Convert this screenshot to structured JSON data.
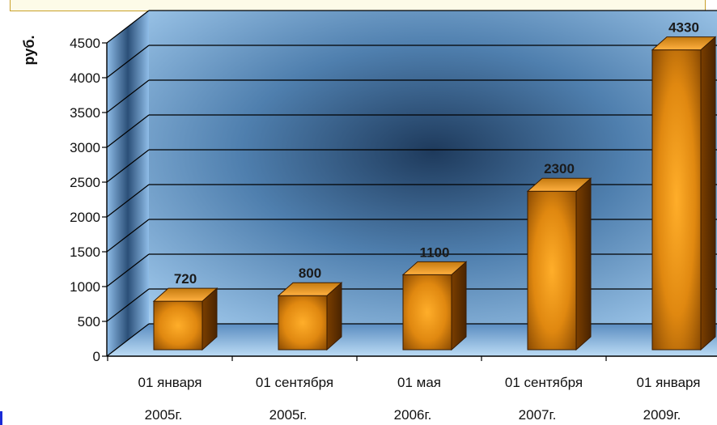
{
  "chart_data": {
    "type": "bar",
    "ylabel": "руб.",
    "ylim": [
      0,
      4500
    ],
    "yticks": [
      0,
      500,
      1000,
      1500,
      2000,
      2500,
      3000,
      3500,
      4000,
      4500
    ],
    "grid": true,
    "categories": [
      [
        "01 января",
        "2005г."
      ],
      [
        "01 сентября",
        "2005г."
      ],
      [
        "01 мая",
        "2006г."
      ],
      [
        "01 сентября",
        "2007г."
      ],
      [
        "01 января",
        "2009г."
      ]
    ],
    "values": [
      720,
      800,
      1100,
      2300,
      4330
    ],
    "data_labels": [
      "720",
      "800",
      "1100",
      "2300",
      "4330"
    ],
    "colors": {
      "bar_light": "#ff9a1a",
      "bar_mid": "#d07808",
      "bar_dark": "#6a3600",
      "wall": "#8fbde8",
      "wall_dark": "#1e3a5c",
      "grid": "#000000"
    }
  }
}
